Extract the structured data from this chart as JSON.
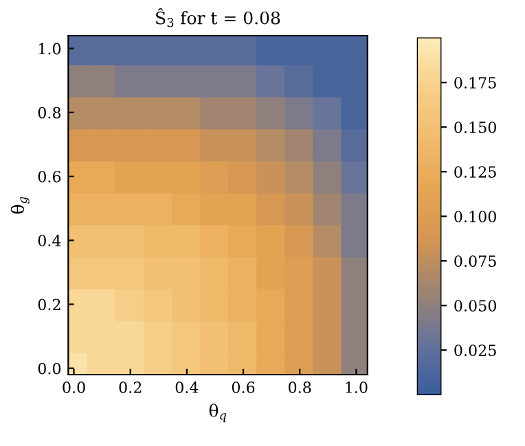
{
  "chart_data": {
    "type": "heatmap",
    "title": "Ŝ$_{3}$ for t = 0.08",
    "xlabel": "θ$_{q}$",
    "ylabel": "θ$_{g}$",
    "x": [
      0.0,
      0.1,
      0.2,
      0.3,
      0.4,
      0.5,
      0.6,
      0.7,
      0.8,
      0.9,
      1.0
    ],
    "y": [
      1.0,
      0.9,
      0.8,
      0.7,
      0.6,
      0.5,
      0.4,
      0.3,
      0.2,
      0.1,
      0.0
    ],
    "cells": [
      [
        0.02,
        0.02,
        0.02,
        0.02,
        0.02,
        0.02,
        0.02,
        0.01,
        0.01,
        0.01,
        0.01
      ],
      [
        0.05,
        0.05,
        0.04,
        0.04,
        0.04,
        0.04,
        0.04,
        0.03,
        0.02,
        0.01,
        0.01
      ],
      [
        0.07,
        0.07,
        0.07,
        0.07,
        0.07,
        0.06,
        0.06,
        0.05,
        0.04,
        0.03,
        0.01
      ],
      [
        0.09,
        0.09,
        0.09,
        0.09,
        0.09,
        0.08,
        0.08,
        0.07,
        0.06,
        0.04,
        0.02
      ],
      [
        0.12,
        0.12,
        0.11,
        0.11,
        0.11,
        0.1,
        0.09,
        0.08,
        0.07,
        0.05,
        0.03
      ],
      [
        0.13,
        0.13,
        0.13,
        0.13,
        0.12,
        0.11,
        0.11,
        0.09,
        0.08,
        0.06,
        0.04
      ],
      [
        0.15,
        0.15,
        0.15,
        0.14,
        0.14,
        0.13,
        0.12,
        0.11,
        0.09,
        0.07,
        0.04
      ],
      [
        0.16,
        0.16,
        0.16,
        0.15,
        0.15,
        0.14,
        0.13,
        0.11,
        0.1,
        0.08,
        0.05
      ],
      [
        0.18,
        0.18,
        0.17,
        0.16,
        0.15,
        0.14,
        0.13,
        0.12,
        0.1,
        0.08,
        0.05
      ],
      [
        0.18,
        0.18,
        0.18,
        0.17,
        0.16,
        0.15,
        0.14,
        0.12,
        0.1,
        0.08,
        0.05
      ],
      [
        0.19,
        0.18,
        0.18,
        0.17,
        0.16,
        0.15,
        0.14,
        0.12,
        0.1,
        0.08,
        0.05
      ]
    ],
    "colors": [
      "#3a5e9c",
      "#66739b",
      "#9c8474",
      "#d39553",
      "#e6a653",
      "#f0bb6c",
      "#f7cf88",
      "#fcecb8"
    ],
    "clim": [
      0,
      0.2
    ],
    "cticks": [
      0.025,
      {
        "value": 0.05,
        "label": "0.050"
      },
      0.075,
      {
        "value": 0.1,
        "label": "0.100"
      },
      0.125,
      {
        "value": 0.15,
        "label": "0.150"
      },
      0.175
    ],
    "xlim": [
      -0.02,
      1.04
    ],
    "ylim": [
      -0.02,
      1.04
    ],
    "xticks": [
      {
        "value": 0,
        "label": "0.0"
      },
      {
        "value": 0.2,
        "label": "0.2"
      },
      {
        "value": 0.4,
        "label": "0.4"
      },
      {
        "value": 0.6,
        "label": "0.6"
      },
      {
        "value": 0.8,
        "label": "0.8"
      },
      {
        "value": 1,
        "label": "1.0"
      }
    ],
    "yticks": [
      {
        "value": 0,
        "label": "0.0"
      },
      {
        "value": 0.2,
        "label": "0.2"
      },
      {
        "value": 0.4,
        "label": "0.4"
      },
      {
        "value": 0.6,
        "label": "0.6"
      },
      {
        "value": 0.8,
        "label": "0.8"
      },
      {
        "value": 1,
        "label": "1.0"
      }
    ]
  }
}
